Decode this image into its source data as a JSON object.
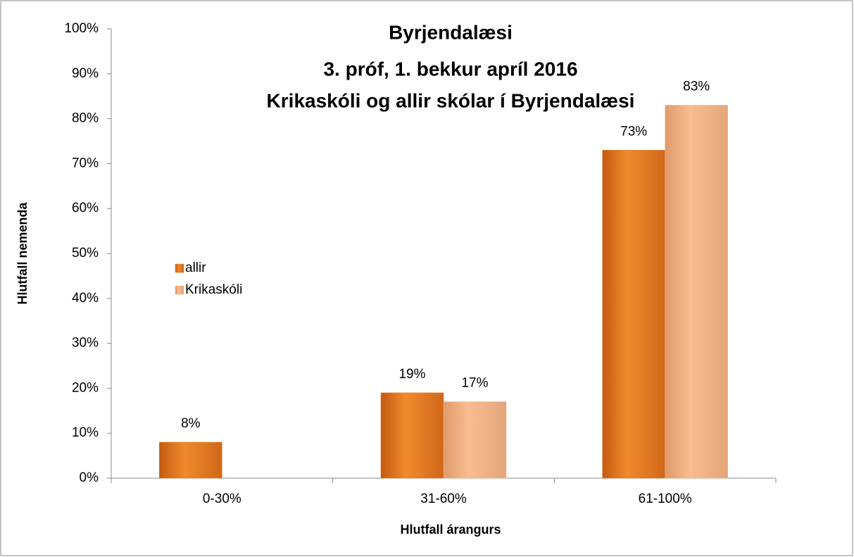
{
  "chart_data": {
    "type": "bar",
    "title": [
      "Byrjendalæsi",
      "3. próf, 1. bekkur apríl  2016",
      "Krikaskóli og allir skólar í Byrjendalæsi"
    ],
    "x_label": "Hlutfall árangurs",
    "y_label": "Hlutfall nemenda",
    "categories": [
      "0-30%",
      "31-60%",
      "61-100%"
    ],
    "series": [
      {
        "name": "allir",
        "color": "#e8781e",
        "values": [
          8,
          19,
          73
        ],
        "value_labels": [
          "8%",
          "19%",
          "73%"
        ]
      },
      {
        "name": "Krikaskóli",
        "color": "#f4b183",
        "values": [
          null,
          17,
          83
        ],
        "value_labels": [
          null,
          "17%",
          "83%"
        ]
      }
    ],
    "ylim": [
      0,
      100
    ],
    "yticks": [
      {
        "value": 0,
        "label": "0%"
      },
      {
        "value": 10,
        "label": "10%"
      },
      {
        "value": 20,
        "label": "20%"
      },
      {
        "value": 30,
        "label": "30%"
      },
      {
        "value": 40,
        "label": "40%"
      },
      {
        "value": 50,
        "label": "50%"
      },
      {
        "value": 60,
        "label": "60%"
      },
      {
        "value": 70,
        "label": "70%"
      },
      {
        "value": 80,
        "label": "80%"
      },
      {
        "value": 90,
        "label": "90%"
      },
      {
        "value": 100,
        "label": "100%"
      }
    ],
    "grid": false,
    "legend": "left"
  }
}
